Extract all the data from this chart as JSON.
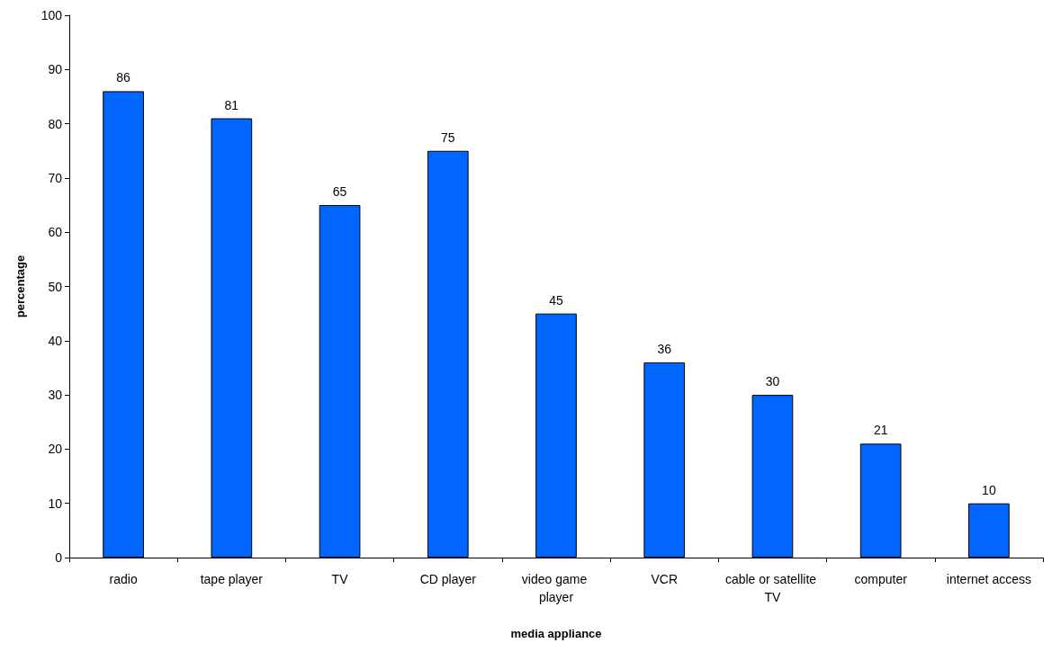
{
  "chart_data": {
    "type": "bar",
    "xlabel": "media appliance",
    "ylabel": "percentage",
    "categories": [
      "radio",
      "tape player",
      "TV",
      "CD player",
      "video game player",
      "VCR",
      "cable or satellite TV",
      "computer",
      "internet access"
    ],
    "values": [
      86,
      81,
      65,
      75,
      45,
      36,
      30,
      21,
      10
    ],
    "color": "#0066ff",
    "ylim": [
      0,
      100
    ],
    "yticks": [
      0,
      10,
      20,
      30,
      40,
      50,
      60,
      70,
      80,
      90,
      100
    ],
    "grid": false,
    "data_labels": true
  }
}
